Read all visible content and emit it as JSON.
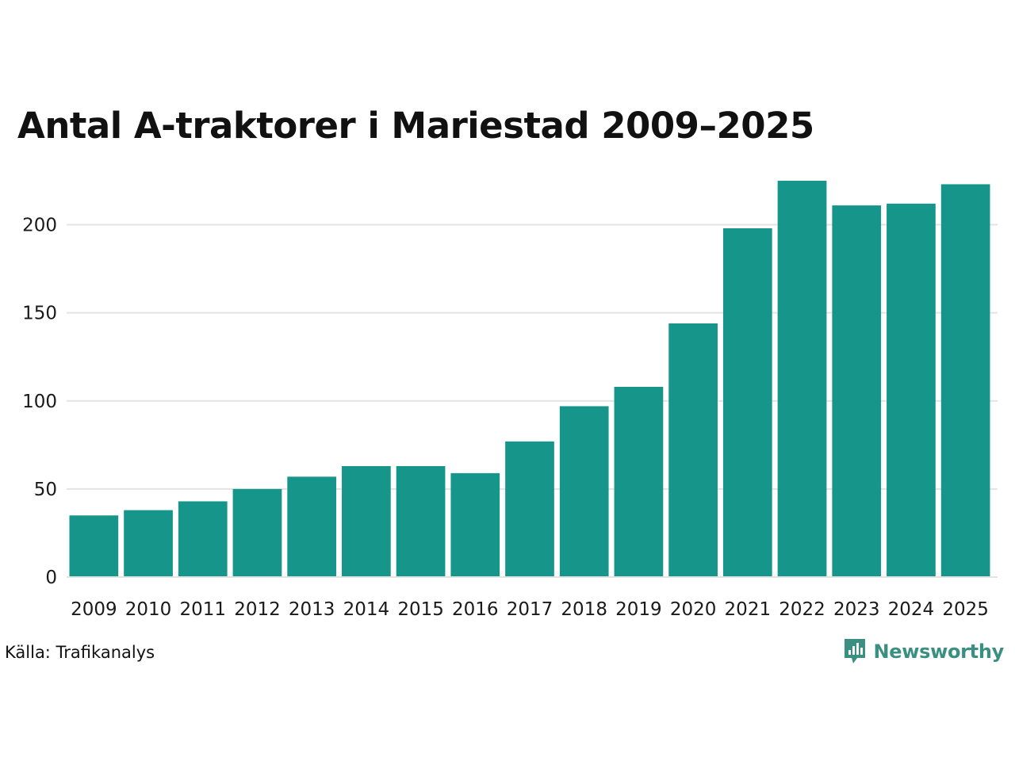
{
  "chart_data": {
    "type": "bar",
    "title": "Antal A-traktorer i Mariestad 2009–2025",
    "categories": [
      "2009",
      "2010",
      "2011",
      "2012",
      "2013",
      "2014",
      "2015",
      "2016",
      "2017",
      "2018",
      "2019",
      "2020",
      "2021",
      "2022",
      "2023",
      "2024",
      "2025"
    ],
    "values": [
      35,
      38,
      43,
      50,
      57,
      63,
      63,
      59,
      77,
      97,
      108,
      144,
      198,
      225,
      211,
      212,
      223
    ],
    "xlabel": "",
    "ylabel": "",
    "ylim": [
      0,
      225
    ],
    "yticks": [
      0,
      50,
      100,
      150,
      200
    ],
    "grid": true,
    "bar_color": "#16968a"
  },
  "footer": {
    "source": "Källa: Trafikanalys",
    "brand": "Newsworthy"
  },
  "colors": {
    "bar": "#16968a",
    "grid": "#e3e3e3",
    "brand": "#3a8f83"
  }
}
